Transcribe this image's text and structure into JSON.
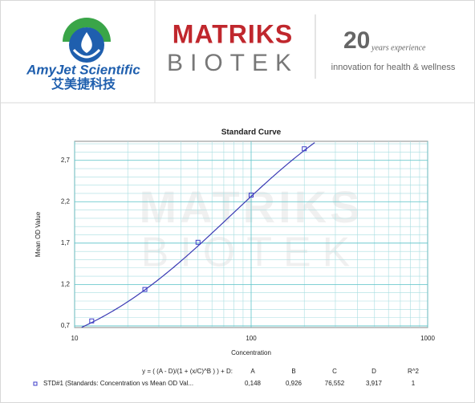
{
  "header": {
    "brand1": "AmyJet Scientific",
    "brand1_cn": "艾美捷科技",
    "brand2_top": "MATRIKS",
    "brand2_bottom": "BIOTEK",
    "years": "20",
    "years_text": "years experience",
    "tagline": "innovation for health & wellness"
  },
  "chart_data": {
    "type": "scatter",
    "title": "Standard Curve",
    "x_label": "Concentration",
    "y_label": "Mean OD Value",
    "watermark": [
      "MATRIKS",
      "BIOTEK"
    ],
    "xscale": "log",
    "xlim": [
      10,
      1000
    ],
    "xticks": [
      10,
      100,
      1000
    ],
    "ylim": [
      0.68,
      2.93
    ],
    "yticks": [
      {
        "value": 0.7,
        "label": "0,7"
      },
      {
        "value": 1.2,
        "label": "1,2"
      },
      {
        "value": 1.7,
        "label": "1,7"
      },
      {
        "value": 2.2,
        "label": "2,2"
      },
      {
        "value": 2.7,
        "label": "2,7"
      }
    ],
    "grid": true,
    "series": [
      {
        "name": "STD#1 (Standards: Concentration vs Mean OD Val...",
        "color": "#3c3cc8",
        "x": [
          12.5,
          25,
          50,
          100,
          200
        ],
        "values": [
          0.76,
          1.14,
          1.71,
          2.28,
          2.84
        ]
      }
    ],
    "fit": {
      "equation": "y = ( (A - D)/(1 + (x/C)^B ) ) + D:",
      "headers": [
        "A",
        "B",
        "C",
        "D",
        "R^2"
      ],
      "params": [
        {
          "value": 0.148,
          "label": "0,148"
        },
        {
          "value": 0.926,
          "label": "0,926"
        },
        {
          "value": 76.552,
          "label": "76,552"
        },
        {
          "value": 3.917,
          "label": "3,917"
        },
        1
      ],
      "color": "#3a3ab4"
    }
  }
}
